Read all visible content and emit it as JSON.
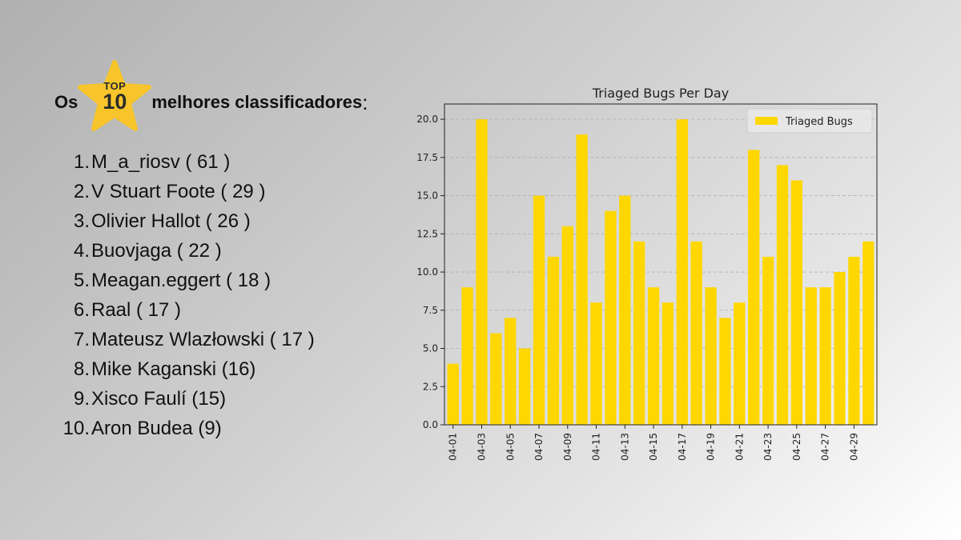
{
  "heading": {
    "prefix": "Os",
    "badge_top": "TOP",
    "badge_number": "10",
    "suffix": "melhores classificadores",
    "colon": ":"
  },
  "colors": {
    "bar": "#FFD700",
    "star": "#F7C52B",
    "grid": "#b0b0b0"
  },
  "ranking": [
    {
      "num": "1.",
      "name": "M_a_riosv ( 61 )"
    },
    {
      "num": "2.",
      "name": "V Stuart Foote ( 29 )"
    },
    {
      "num": "3.",
      "name": "Olivier Hallot ( 26 )"
    },
    {
      "num": "4.",
      "name": "Buovjaga ( 22 )"
    },
    {
      "num": "5.",
      "name": "Meagan.eggert ( 18 )"
    },
    {
      "num": "6.",
      "name": "Raal ( 17 )"
    },
    {
      "num": "7.",
      "name": "Mateusz Wlazłowski ( 17 )"
    },
    {
      "num": "8.",
      "name": "Mike Kaganski (16)"
    },
    {
      "num": "9.",
      "name": "Xisco Faulí (15)"
    },
    {
      "num": "10.",
      "name": "Aron Budea (9)"
    }
  ],
  "chart_data": {
    "type": "bar",
    "title": "Triaged Bugs Per Day",
    "xlabel": "",
    "ylabel": "",
    "legend": {
      "label": "Triaged Bugs",
      "placement": "top-right"
    },
    "categories": [
      "04-01",
      "04-02",
      "04-03",
      "04-04",
      "04-05",
      "04-06",
      "04-07",
      "04-08",
      "04-09",
      "04-10",
      "04-11",
      "04-12",
      "04-13",
      "04-14",
      "04-15",
      "04-16",
      "04-17",
      "04-18",
      "04-19",
      "04-20",
      "04-21",
      "04-22",
      "04-23",
      "04-24",
      "04-25",
      "04-26",
      "04-27",
      "04-28",
      "04-29",
      "04-30"
    ],
    "values": [
      4,
      9,
      20,
      6,
      7,
      5,
      15,
      11,
      13,
      19,
      8,
      14,
      15,
      12,
      9,
      8,
      20,
      12,
      9,
      7,
      8,
      18,
      11,
      17,
      16,
      9,
      9,
      10,
      11,
      12
    ],
    "tick_labels_x": [
      "04-01",
      "04-03",
      "04-05",
      "04-07",
      "04-09",
      "04-11",
      "04-13",
      "04-15",
      "04-17",
      "04-19",
      "04-21",
      "04-23",
      "04-25",
      "04-27",
      "04-29"
    ],
    "ylim": [
      0,
      21
    ],
    "yticks": [
      0.0,
      2.5,
      5.0,
      7.5,
      10.0,
      12.5,
      15.0,
      17.5,
      20.0
    ],
    "ytick_labels": [
      "0.0",
      "2.5",
      "5.0",
      "7.5",
      "10.0",
      "12.5",
      "15.0",
      "17.5",
      "20.0"
    ],
    "grid": "y-dashed"
  }
}
